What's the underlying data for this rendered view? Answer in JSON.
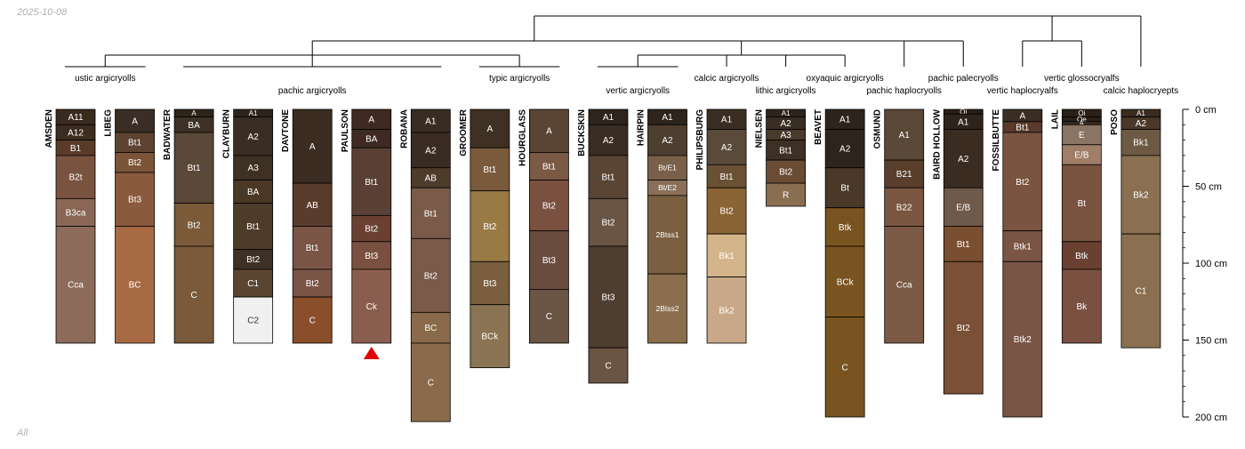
{
  "header": {
    "date": "2025-10-08"
  },
  "footer": {
    "label": "All"
  },
  "depth_axis": {
    "unit": "cm",
    "max_depth": 200,
    "ticks": [
      {
        "value": 0,
        "label": "0 cm"
      },
      {
        "value": 50,
        "label": "50 cm"
      },
      {
        "value": 100,
        "label": "100 cm"
      },
      {
        "value": 150,
        "label": "150 cm"
      },
      {
        "value": 200,
        "label": "200 cm"
      }
    ]
  },
  "groups": [
    {
      "name": "ustic argicryolls",
      "members": [
        "AMSDEN",
        "LIBEG"
      ]
    },
    {
      "name": "pachic argicryolls",
      "members": [
        "BADWATER",
        "CLAYBURN",
        "DAVTONE",
        "PAULSON",
        "ROBANA"
      ]
    },
    {
      "name": "typic argicryolls",
      "members": [
        "GROOMER",
        "HOURGLASS"
      ]
    },
    {
      "name": "vertic argicryolls",
      "members": [
        "BUCKSKIN",
        "HAIRPIN"
      ]
    },
    {
      "name": "calcic argicryolls",
      "members": [
        "PHILIPSBURG"
      ]
    },
    {
      "name": "lithic argicryolls",
      "members": [
        "NIELSEN"
      ]
    },
    {
      "name": "oxyaquic argicryolls",
      "members": [
        "BEAVET"
      ]
    },
    {
      "name": "pachic haplocryolls",
      "members": [
        "OSMUND"
      ]
    },
    {
      "name": "pachic palecryolls",
      "members": [
        "BAIRD HOLLOW"
      ]
    },
    {
      "name": "vertic haplocryalfs",
      "members": [
        "FOSSILBUTTE"
      ]
    },
    {
      "name": "vertic glossocryalfs",
      "members": [
        "LAIL"
      ]
    },
    {
      "name": "calcic haplocryepts",
      "members": [
        "POSO"
      ]
    }
  ],
  "profiles": [
    {
      "name": "AMSDEN",
      "horizons": [
        {
          "name": "A11",
          "top": 0,
          "bottom": 10,
          "color": "#3a2b1f"
        },
        {
          "name": "A12",
          "top": 10,
          "bottom": 20,
          "color": "#3d2c20"
        },
        {
          "name": "B1",
          "top": 20,
          "bottom": 30,
          "color": "#5a3b2a"
        },
        {
          "name": "B2t",
          "top": 30,
          "bottom": 58,
          "color": "#7a5240"
        },
        {
          "name": "B3ca",
          "top": 58,
          "bottom": 76,
          "color": "#8a6655"
        },
        {
          "name": "Cca",
          "top": 76,
          "bottom": 152,
          "color": "#8c6b5a"
        }
      ]
    },
    {
      "name": "LIBEG",
      "horizons": [
        {
          "name": "A",
          "top": 0,
          "bottom": 15,
          "color": "#3a2e26"
        },
        {
          "name": "Bt1",
          "top": 15,
          "bottom": 28,
          "color": "#5e4332"
        },
        {
          "name": "Bt2",
          "top": 28,
          "bottom": 41,
          "color": "#7c5438"
        },
        {
          "name": "Bt3",
          "top": 41,
          "bottom": 76,
          "color": "#8a5a3e"
        },
        {
          "name": "BC",
          "top": 76,
          "bottom": 152,
          "color": "#a86a45"
        }
      ]
    },
    {
      "name": "BADWATER",
      "horizons": [
        {
          "name": "A",
          "top": 0,
          "bottom": 5,
          "color": "#2e2419"
        },
        {
          "name": "BA",
          "top": 5,
          "bottom": 15,
          "color": "#3e3226"
        },
        {
          "name": "Bt1",
          "top": 15,
          "bottom": 61,
          "color": "#5a4838"
        },
        {
          "name": "Bt2",
          "top": 61,
          "bottom": 89,
          "color": "#7a5a38"
        },
        {
          "name": "C",
          "top": 89,
          "bottom": 152,
          "color": "#7a5a3a"
        }
      ]
    },
    {
      "name": "CLAYBURN",
      "horizons": [
        {
          "name": "A1",
          "top": 0,
          "bottom": 5,
          "color": "#2e241c"
        },
        {
          "name": "A2",
          "top": 5,
          "bottom": 30,
          "color": "#3a2e24"
        },
        {
          "name": "A3",
          "top": 30,
          "bottom": 46,
          "color": "#3e3022"
        },
        {
          "name": "BA",
          "top": 46,
          "bottom": 61,
          "color": "#4a3826"
        },
        {
          "name": "Bt1",
          "top": 61,
          "bottom": 91,
          "color": "#4e3c2a"
        },
        {
          "name": "Bt2",
          "top": 91,
          "bottom": 104,
          "color": "#3e3024"
        },
        {
          "name": "C1",
          "top": 104,
          "bottom": 122,
          "color": "#5a4530"
        },
        {
          "name": "C2",
          "top": 122,
          "bottom": 152,
          "color": "#f0f0f0"
        }
      ]
    },
    {
      "name": "DAVTONE",
      "horizons": [
        {
          "name": "A",
          "top": 0,
          "bottom": 48,
          "color": "#3a2c20"
        },
        {
          "name": "AB",
          "top": 48,
          "bottom": 76,
          "color": "#5a3c2c"
        },
        {
          "name": "Bt1",
          "top": 76,
          "bottom": 104,
          "color": "#7a5444"
        },
        {
          "name": "Bt2",
          "top": 104,
          "bottom": 122,
          "color": "#7a5444"
        },
        {
          "name": "C",
          "top": 122,
          "bottom": 152,
          "color": "#8a4e2a"
        }
      ]
    },
    {
      "name": "PAULSON",
      "horizons": [
        {
          "name": "A",
          "top": 0,
          "bottom": 13,
          "color": "#3e2a22"
        },
        {
          "name": "BA",
          "top": 13,
          "bottom": 25,
          "color": "#3e2a22"
        },
        {
          "name": "Bt1",
          "top": 25,
          "bottom": 69,
          "color": "#5a4034"
        },
        {
          "name": "Bt2",
          "top": 69,
          "bottom": 86,
          "color": "#6a4032"
        },
        {
          "name": "Bt3",
          "top": 86,
          "bottom": 104,
          "color": "#7a5040"
        },
        {
          "name": "Ck",
          "top": 104,
          "bottom": 152,
          "color": "#8a5e4e"
        }
      ]
    },
    {
      "name": "ROBANA",
      "horizons": [
        {
          "name": "A1",
          "top": 0,
          "bottom": 15,
          "color": "#3a2c22"
        },
        {
          "name": "A2",
          "top": 15,
          "bottom": 38,
          "color": "#3a2c22"
        },
        {
          "name": "AB",
          "top": 38,
          "bottom": 51,
          "color": "#4e3c2a"
        },
        {
          "name": "Bt1",
          "top": 51,
          "bottom": 84,
          "color": "#7a5a48"
        },
        {
          "name": "Bt2",
          "top": 84,
          "bottom": 132,
          "color": "#7a5a48"
        },
        {
          "name": "BC",
          "top": 132,
          "bottom": 152,
          "color": "#8a6a4a"
        },
        {
          "name": "C",
          "top": 152,
          "bottom": 203,
          "color": "#8a6a4a"
        }
      ]
    },
    {
      "name": "GROOMER",
      "horizons": [
        {
          "name": "A",
          "top": 0,
          "bottom": 25,
          "color": "#3e3022"
        },
        {
          "name": "Bt1",
          "top": 25,
          "bottom": 53,
          "color": "#7a5a3a"
        },
        {
          "name": "Bt2",
          "top": 53,
          "bottom": 99,
          "color": "#9a7a44"
        },
        {
          "name": "Bt3",
          "top": 99,
          "bottom": 127,
          "color": "#7a5e3e"
        },
        {
          "name": "BCk",
          "top": 127,
          "bottom": 168,
          "color": "#8a7454"
        }
      ]
    },
    {
      "name": "HOURGLASS",
      "horizons": [
        {
          "name": "A",
          "top": 0,
          "bottom": 28,
          "color": "#5a4434"
        },
        {
          "name": "Bt1",
          "top": 28,
          "bottom": 46,
          "color": "#7a5a44"
        },
        {
          "name": "Bt2",
          "top": 46,
          "bottom": 79,
          "color": "#7a5040"
        },
        {
          "name": "Bt3",
          "top": 79,
          "bottom": 117,
          "color": "#6a4c3e"
        },
        {
          "name": "C",
          "top": 117,
          "bottom": 152,
          "color": "#6a5444"
        }
      ]
    },
    {
      "name": "BUCKSKIN",
      "horizons": [
        {
          "name": "A1",
          "top": 0,
          "bottom": 10,
          "color": "#2e241c"
        },
        {
          "name": "A2",
          "top": 10,
          "bottom": 30,
          "color": "#3a2e24"
        },
        {
          "name": "Bt1",
          "top": 30,
          "bottom": 58,
          "color": "#5a4434"
        },
        {
          "name": "Bt2",
          "top": 58,
          "bottom": 89,
          "color": "#6a5444"
        },
        {
          "name": "Bt3",
          "top": 89,
          "bottom": 155,
          "color": "#4e3e30"
        },
        {
          "name": "C",
          "top": 155,
          "bottom": 178,
          "color": "#6a5444"
        }
      ]
    },
    {
      "name": "HAIRPIN",
      "horizons": [
        {
          "name": "A1",
          "top": 0,
          "bottom": 10,
          "color": "#2e241c"
        },
        {
          "name": "A2",
          "top": 10,
          "bottom": 30,
          "color": "#4e3e30"
        },
        {
          "name": "Bt/E1",
          "top": 30,
          "bottom": 46,
          "color": "#7a6048"
        },
        {
          "name": "Bt/E2",
          "top": 46,
          "bottom": 56,
          "color": "#8a7058"
        },
        {
          "name": "2Btss1",
          "top": 56,
          "bottom": 107,
          "color": "#7a6040"
        },
        {
          "name": "2Btss2",
          "top": 107,
          "bottom": 152,
          "color": "#8a6e4e"
        }
      ]
    },
    {
      "name": "PHILIPSBURG",
      "horizons": [
        {
          "name": "A1",
          "top": 0,
          "bottom": 13,
          "color": "#3a2e24"
        },
        {
          "name": "A2",
          "top": 13,
          "bottom": 36,
          "color": "#5a4a3a"
        },
        {
          "name": "Bt1",
          "top": 36,
          "bottom": 51,
          "color": "#6a5034"
        },
        {
          "name": "Bt2",
          "top": 51,
          "bottom": 81,
          "color": "#8a6434"
        },
        {
          "name": "Bk1",
          "top": 81,
          "bottom": 109,
          "color": "#d4b48a"
        },
        {
          "name": "Bk2",
          "top": 109,
          "bottom": 152,
          "color": "#c8a888"
        }
      ]
    },
    {
      "name": "NIELSEN",
      "horizons": [
        {
          "name": "A1",
          "top": 0,
          "bottom": 5,
          "color": "#2e241c"
        },
        {
          "name": "A2",
          "top": 5,
          "bottom": 13,
          "color": "#3a2e24"
        },
        {
          "name": "A3",
          "top": 13,
          "bottom": 20,
          "color": "#4a3a2c"
        },
        {
          "name": "Bt1",
          "top": 20,
          "bottom": 33,
          "color": "#3e3024"
        },
        {
          "name": "Bt2",
          "top": 33,
          "bottom": 48,
          "color": "#6a4c34"
        },
        {
          "name": "R",
          "top": 48,
          "bottom": 63,
          "color": "#8a6e50"
        }
      ]
    },
    {
      "name": "BEAVET",
      "horizons": [
        {
          "name": "A1",
          "top": 0,
          "bottom": 13,
          "color": "#2e241c"
        },
        {
          "name": "A2",
          "top": 13,
          "bottom": 38,
          "color": "#2e241c"
        },
        {
          "name": "Bt",
          "top": 38,
          "bottom": 64,
          "color": "#4a3828"
        },
        {
          "name": "Btk",
          "top": 64,
          "bottom": 89,
          "color": "#7a5420"
        },
        {
          "name": "BCk",
          "top": 89,
          "bottom": 135,
          "color": "#7a5420"
        },
        {
          "name": "C",
          "top": 135,
          "bottom": 200,
          "color": "#7a5420"
        }
      ]
    },
    {
      "name": "OSMUND",
      "horizons": [
        {
          "name": "A1",
          "top": 0,
          "bottom": 33,
          "color": "#5a4838"
        },
        {
          "name": "B21",
          "top": 33,
          "bottom": 51,
          "color": "#5a3e2c"
        },
        {
          "name": "B22",
          "top": 51,
          "bottom": 76,
          "color": "#7a5640"
        },
        {
          "name": "Cca",
          "top": 76,
          "bottom": 152,
          "color": "#7a5a44"
        }
      ]
    },
    {
      "name": "BAIRD HOLLOW",
      "horizons": [
        {
          "name": "Oi",
          "top": 0,
          "bottom": 3,
          "color": "#2a2018"
        },
        {
          "name": "A1",
          "top": 3,
          "bottom": 13,
          "color": "#2e241c"
        },
        {
          "name": "A2",
          "top": 13,
          "bottom": 51,
          "color": "#3a2c20"
        },
        {
          "name": "E/B",
          "top": 51,
          "bottom": 76,
          "color": "#6e5a4a"
        },
        {
          "name": "Bt1",
          "top": 76,
          "bottom": 99,
          "color": "#7a4e30"
        },
        {
          "name": "Bt2",
          "top": 99,
          "bottom": 185,
          "color": "#7a5036"
        }
      ]
    },
    {
      "name": "FOSSILBUTTE",
      "horizons": [
        {
          "name": "A",
          "top": 0,
          "bottom": 8,
          "color": "#3a2e24"
        },
        {
          "name": "Bt1",
          "top": 8,
          "bottom": 15,
          "color": "#5a3a2a"
        },
        {
          "name": "Bt2",
          "top": 15,
          "bottom": 79,
          "color": "#7a5440"
        },
        {
          "name": "Btk1",
          "top": 79,
          "bottom": 99,
          "color": "#7a5444"
        },
        {
          "name": "Btk2",
          "top": 99,
          "bottom": 200,
          "color": "#7a5444"
        }
      ]
    },
    {
      "name": "LAIL",
      "horizons": [
        {
          "name": "Oi",
          "top": 0,
          "bottom": 5,
          "color": "#2a2018"
        },
        {
          "name": "Oe",
          "top": 5,
          "bottom": 8,
          "color": "#2a2018"
        },
        {
          "name": "A",
          "top": 8,
          "bottom": 10,
          "color": "#3a2e24"
        },
        {
          "name": "E",
          "top": 10,
          "bottom": 23,
          "color": "#8a7464"
        },
        {
          "name": "E/B",
          "top": 23,
          "bottom": 36,
          "color": "#a07e68"
        },
        {
          "name": "Bt",
          "top": 36,
          "bottom": 86,
          "color": "#7a5440"
        },
        {
          "name": "Btk",
          "top": 86,
          "bottom": 104,
          "color": "#6a4030"
        },
        {
          "name": "Bk",
          "top": 104,
          "bottom": 152,
          "color": "#7a5040"
        }
      ]
    },
    {
      "name": "POSO",
      "horizons": [
        {
          "name": "A1",
          "top": 0,
          "bottom": 5,
          "color": "#3a2c20"
        },
        {
          "name": "A2",
          "top": 5,
          "bottom": 13,
          "color": "#4a3828"
        },
        {
          "name": "Bk1",
          "top": 13,
          "bottom": 30,
          "color": "#6e5a44"
        },
        {
          "name": "Bk2",
          "top": 30,
          "bottom": 81,
          "color": "#8a7050"
        },
        {
          "name": "C1",
          "top": 81,
          "bottom": 155,
          "color": "#8a7050"
        }
      ]
    }
  ],
  "markers": [
    {
      "profile": "PAULSON",
      "symbol": "triangle",
      "color": "#e00000"
    }
  ]
}
